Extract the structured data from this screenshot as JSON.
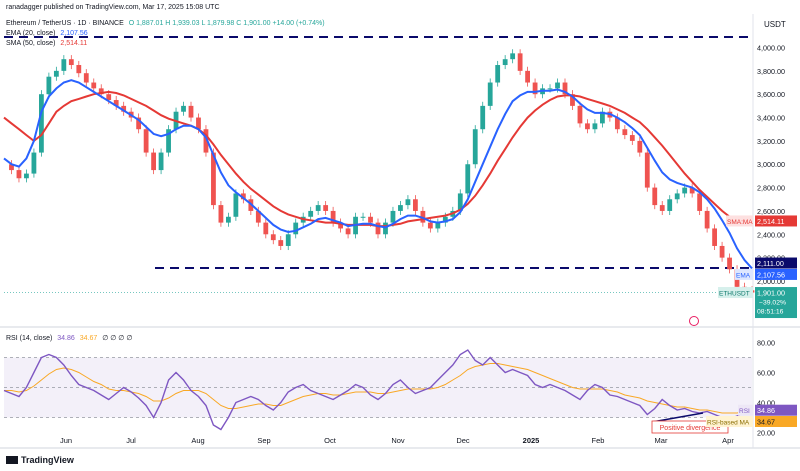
{
  "header": {
    "publisher": "ranadagger published on TradingView.com, Mar 17, 2025 15:08 UTC",
    "symbol": "Ethereum / TetherUS · 1D · BINANCE",
    "ohlc": "O 1,887.01  H 1,939.03  L 1,879.98  C 1,901.00  +14.00 (+0.74%)",
    "ema_label": "EMA (20, close)",
    "ema_value": "2,107.56",
    "sma_label": "SMA (50, close)",
    "sma_value": "2,514.11",
    "currency": "USDT"
  },
  "footer": {
    "brand": "TradingView"
  },
  "colors": {
    "up": "#26a69a",
    "down": "#ef5350",
    "ema": "#2962ff",
    "sma": "#e53935",
    "rsi": "#7e57c2",
    "rsi_ma": "#f9a825",
    "level": "#0a0a6b"
  },
  "price_tags": {
    "sma": {
      "label": "SMA:MA",
      "value": "2,514.11"
    },
    "level": {
      "value": "2,111.00"
    },
    "ema": {
      "label": "EMA",
      "value": "2,107.56"
    },
    "eth": {
      "label": "ETHUSDT",
      "value": "1,901.00",
      "change": "−39.02%",
      "countdown": "08:51:16"
    }
  },
  "rsi_panel": {
    "label": "RSI (14, close)",
    "value": "34.86",
    "ma_value": "34.67",
    "tail": "∅ ∅ ∅ ∅",
    "tag_rsi": "RSI",
    "tag_ma": "RSI-based MA",
    "annotation": "Positive divergence"
  },
  "chart_data": [
    {
      "type": "line",
      "title": "Ethereum / TetherUS · 1D · BINANCE",
      "xlabel": "",
      "ylabel": "USDT",
      "ylim": [
        1700,
        4150
      ],
      "x_ticks": [
        "Jun",
        "Jul",
        "Aug",
        "Sep",
        "Oct",
        "Nov",
        "Dec",
        "2025",
        "Feb",
        "Mar",
        "Apr"
      ],
      "y_ticks": [
        "4,000.00",
        "3,800.00",
        "3,600.00",
        "3,400.00",
        "3,200.00",
        "3,000.00",
        "2,800.00",
        "2,600.00",
        "2,400.00",
        "2,200.00",
        "2,000.00"
      ],
      "horizontal_levels": [
        4090,
        2111
      ],
      "series": [
        {
          "name": "ETHUSDT close",
          "values": [
            3000,
            2950,
            2880,
            2920,
            3100,
            3600,
            3750,
            3800,
            3900,
            3850,
            3780,
            3700,
            3650,
            3600,
            3550,
            3500,
            3450,
            3400,
            3300,
            3100,
            2950,
            3100,
            3300,
            3450,
            3500,
            3400,
            3300,
            3100,
            2650,
            2500,
            2550,
            2750,
            2700,
            2600,
            2500,
            2400,
            2350,
            2300,
            2400,
            2500,
            2550,
            2600,
            2650,
            2600,
            2500,
            2450,
            2400,
            2550,
            2550,
            2500,
            2400,
            2500,
            2600,
            2650,
            2700,
            2600,
            2500,
            2450,
            2500,
            2550,
            2600,
            2750,
            3000,
            3300,
            3500,
            3700,
            3850,
            3900,
            3950,
            3800,
            3700,
            3600,
            3650,
            3650,
            3700,
            3600,
            3500,
            3350,
            3300,
            3350,
            3450,
            3400,
            3300,
            3250,
            3200,
            3100,
            2800,
            2650,
            2600,
            2700,
            2750,
            2800,
            2750,
            2600,
            2450,
            2300,
            2200,
            2100,
            1950,
            1920,
            1901
          ]
        },
        {
          "name": "EMA (20, close)",
          "values": [
            3050,
            3000,
            2980,
            3050,
            3200,
            3450,
            3580,
            3650,
            3700,
            3720,
            3700,
            3660,
            3620,
            3580,
            3540,
            3500,
            3460,
            3420,
            3380,
            3320,
            3260,
            3240,
            3260,
            3300,
            3330,
            3330,
            3300,
            3230,
            3080,
            2930,
            2820,
            2760,
            2710,
            2660,
            2600,
            2540,
            2480,
            2440,
            2420,
            2430,
            2460,
            2490,
            2530,
            2540,
            2520,
            2500,
            2470,
            2480,
            2490,
            2490,
            2470,
            2460,
            2490,
            2530,
            2560,
            2560,
            2540,
            2510,
            2500,
            2510,
            2530,
            2590,
            2700,
            2850,
            3000,
            3150,
            3300,
            3430,
            3540,
            3590,
            3620,
            3620,
            3630,
            3630,
            3640,
            3620,
            3580,
            3520,
            3470,
            3440,
            3440,
            3430,
            3400,
            3360,
            3310,
            3250,
            3140,
            3030,
            2930,
            2870,
            2840,
            2820,
            2800,
            2760,
            2700,
            2620,
            2520,
            2410,
            2280,
            2180,
            2108
          ]
        },
        {
          "name": "SMA (50, close)",
          "values": [
            3400,
            3350,
            3300,
            3250,
            3200,
            3250,
            3350,
            3450,
            3500,
            3540,
            3560,
            3580,
            3600,
            3610,
            3620,
            3610,
            3590,
            3560,
            3530,
            3500,
            3460,
            3420,
            3390,
            3370,
            3350,
            3330,
            3300,
            3250,
            3170,
            3080,
            3000,
            2920,
            2850,
            2790,
            2740,
            2690,
            2640,
            2600,
            2570,
            2550,
            2530,
            2520,
            2510,
            2500,
            2500,
            2490,
            2480,
            2480,
            2480,
            2480,
            2470,
            2470,
            2480,
            2490,
            2510,
            2520,
            2530,
            2540,
            2550,
            2560,
            2580,
            2610,
            2660,
            2730,
            2820,
            2920,
            3030,
            3130,
            3230,
            3320,
            3400,
            3460,
            3510,
            3550,
            3580,
            3590,
            3590,
            3580,
            3560,
            3540,
            3520,
            3500,
            3470,
            3440,
            3400,
            3360,
            3300,
            3230,
            3160,
            3080,
            3000,
            2920,
            2850,
            2780,
            2720,
            2660,
            2600,
            2550,
            2520,
            2514,
            2514
          ]
        }
      ]
    },
    {
      "type": "line",
      "title": "RSI (14, close)",
      "ylim": [
        15,
        85
      ],
      "y_ticks": [
        "80.00",
        "60.00",
        "40.00",
        "20.00"
      ],
      "levels": [
        70,
        50,
        30
      ],
      "series": [
        {
          "name": "RSI",
          "values": [
            48,
            46,
            44,
            50,
            60,
            70,
            72,
            70,
            65,
            58,
            52,
            50,
            48,
            45,
            42,
            46,
            50,
            47,
            43,
            38,
            30,
            40,
            55,
            60,
            55,
            48,
            44,
            38,
            25,
            22,
            30,
            40,
            42,
            44,
            42,
            38,
            35,
            40,
            47,
            50,
            52,
            48,
            46,
            44,
            42,
            45,
            48,
            52,
            50,
            45,
            42,
            46,
            52,
            55,
            50,
            46,
            48,
            50,
            55,
            60,
            65,
            72,
            75,
            68,
            65,
            70,
            65,
            60,
            62,
            60,
            58,
            52,
            50,
            52,
            50,
            48,
            45,
            42,
            48,
            52,
            50,
            45,
            44,
            42,
            40,
            38,
            32,
            36,
            42,
            38,
            35,
            36,
            34,
            33,
            34,
            32,
            30,
            29,
            31,
            33,
            34.86
          ]
        },
        {
          "name": "RSI-based MA",
          "values": [
            48,
            48,
            47,
            48,
            51,
            55,
            59,
            62,
            63,
            62,
            60,
            57,
            54,
            52,
            49,
            48,
            48,
            47,
            46,
            44,
            41,
            41,
            43,
            46,
            48,
            48,
            48,
            46,
            42,
            38,
            36,
            36,
            37,
            38,
            39,
            39,
            38,
            38,
            40,
            42,
            44,
            45,
            46,
            46,
            45,
            45,
            46,
            47,
            47,
            47,
            46,
            46,
            47,
            48,
            49,
            49,
            49,
            49,
            50,
            52,
            55,
            58,
            62,
            64,
            65,
            66,
            66,
            65,
            64,
            63,
            62,
            60,
            58,
            56,
            54,
            52,
            50,
            49,
            49,
            49,
            49,
            48,
            47,
            45,
            44,
            43,
            41,
            40,
            39,
            38,
            37,
            37,
            36,
            35,
            35,
            34,
            33,
            33,
            33,
            34,
            34.67
          ]
        }
      ]
    }
  ]
}
